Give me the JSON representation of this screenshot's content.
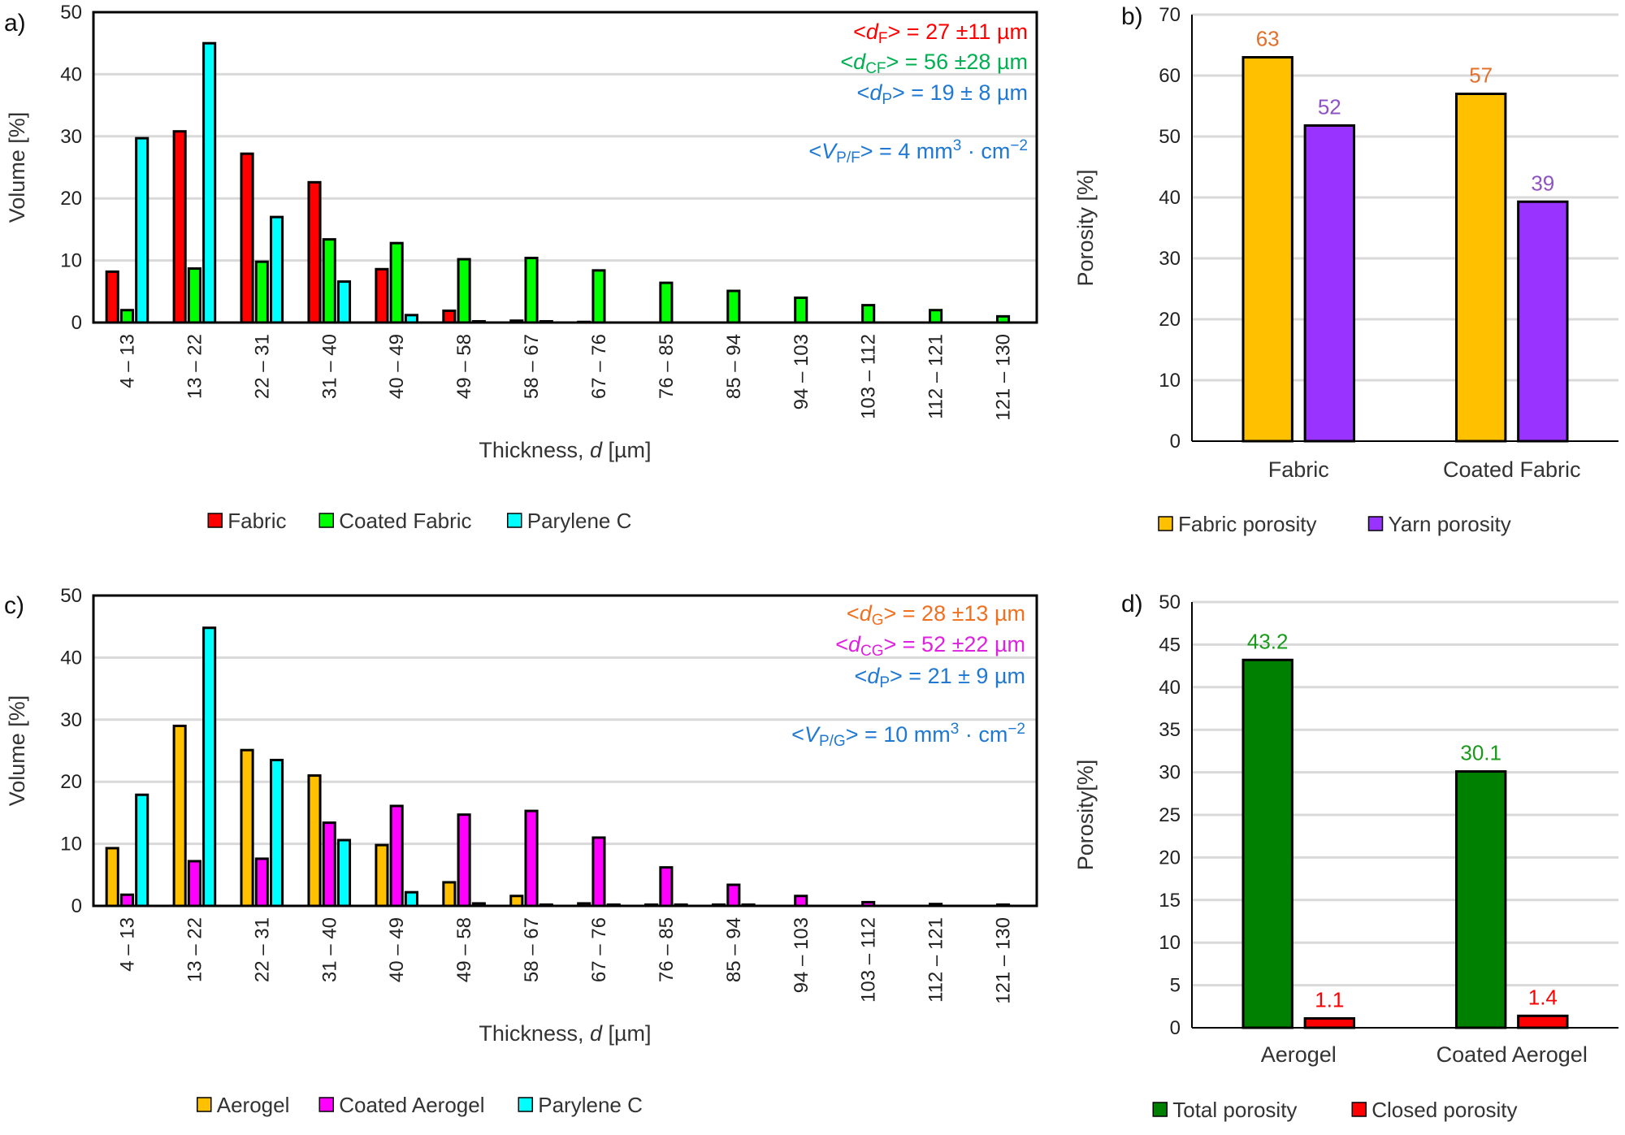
{
  "chart_data": [
    {
      "panel": "a)",
      "type": "bar",
      "ylabel": "Volume [%]",
      "xlabel_parts": [
        {
          "t": "Thickness, "
        },
        {
          "t": "d",
          "s": "i"
        },
        {
          "t": " [µm]"
        }
      ],
      "ylim": [
        0,
        50
      ],
      "ystep": 10,
      "grid": true,
      "legend": "bottom",
      "categories": [
        "4 – 13",
        "13 – 22",
        "22 – 31",
        "31 – 40",
        "40 – 49",
        "49 – 58",
        "58 – 67",
        "67 – 76",
        "76 – 85",
        "85 – 94",
        "94 – 103",
        "103 – 112",
        "112 – 121",
        "121 – 130"
      ],
      "series": [
        {
          "name": "Fabric",
          "color": "#ff0000",
          "values": [
            8.2,
            30.8,
            27.2,
            22.6,
            8.6,
            1.9,
            0.3,
            0.1,
            0,
            0,
            0,
            0,
            0,
            0
          ]
        },
        {
          "name": "Coated Fabric",
          "color": "#00ff00",
          "values": [
            2.0,
            8.7,
            9.8,
            13.4,
            12.8,
            10.2,
            10.4,
            8.4,
            6.4,
            5.1,
            4.0,
            2.8,
            2.0,
            1.0
          ]
        },
        {
          "name": "Parylene C",
          "color": "#00ffff",
          "values": [
            29.7,
            45.0,
            17.0,
            6.6,
            1.2,
            0.2,
            0.2,
            0,
            0,
            0,
            0,
            0,
            0,
            0
          ]
        }
      ],
      "annotations": [
        {
          "color": "#ff0000",
          "parts": [
            {
              "t": "<"
            },
            {
              "t": "d",
              "s": "i"
            },
            {
              "t": "F",
              "s": "sub"
            },
            {
              "t": "> = 27 ±11 µm"
            }
          ]
        },
        {
          "color": "#00b050",
          "parts": [
            {
              "t": "<"
            },
            {
              "t": "d",
              "s": "i"
            },
            {
              "t": "CF",
              "s": "sub"
            },
            {
              "t": "> = 56 ±28 µm"
            }
          ]
        },
        {
          "color": "#1f78d1",
          "parts": [
            {
              "t": "<"
            },
            {
              "t": "d",
              "s": "i"
            },
            {
              "t": "P",
              "s": "sub"
            },
            {
              "t": "> = 19 ± 8 µm"
            }
          ]
        },
        {
          "color": "#1f78d1",
          "parts": [
            {
              "t": "<"
            },
            {
              "t": "V",
              "s": "i"
            },
            {
              "t": "P/F",
              "s": "sub"
            },
            {
              "t": "> = 4 mm"
            },
            {
              "t": "3",
              "s": "sup"
            },
            {
              "t": " · cm"
            },
            {
              "t": "−2",
              "s": "sup"
            }
          ]
        }
      ]
    },
    {
      "panel": "b)",
      "type": "bar",
      "ylabel": "Porosity [%]",
      "ylim": [
        0,
        70
      ],
      "ystep": 10,
      "grid": true,
      "legend": "bottom",
      "categories": [
        "Fabric",
        "Coated Fabric"
      ],
      "series": [
        {
          "name": "Fabric porosity",
          "color": "#ffc000",
          "label_color": "#e0702a",
          "values": [
            63,
            57
          ],
          "labels": [
            "63",
            "57"
          ]
        },
        {
          "name": "Yarn porosity",
          "color": "#9933ff",
          "label_color": "#8e52c4",
          "values": [
            51.8,
            39.3
          ],
          "labels": [
            "52",
            "39"
          ]
        }
      ]
    },
    {
      "panel": "c)",
      "type": "bar",
      "ylabel": "Volume [%]",
      "xlabel_parts": [
        {
          "t": "Thickness, "
        },
        {
          "t": "d",
          "s": "i"
        },
        {
          "t": " [µm]"
        }
      ],
      "ylim": [
        0,
        50
      ],
      "ystep": 10,
      "grid": true,
      "legend": "bottom",
      "categories": [
        "4 – 13",
        "13 – 22",
        "22 – 31",
        "31 – 40",
        "40 – 49",
        "49 – 58",
        "58 – 67",
        "67 – 76",
        "76 – 85",
        "85 – 94",
        "94 – 103",
        "103 – 112",
        "112 – 121",
        "121 – 130"
      ],
      "series": [
        {
          "name": "Aerogel",
          "color": "#ffc000",
          "values": [
            9.3,
            29.0,
            25.1,
            21.0,
            9.8,
            3.8,
            1.6,
            0.4,
            0.2,
            0.2,
            0,
            0,
            0,
            0
          ]
        },
        {
          "name": "Coated Aerogel",
          "color": "#ff00ff",
          "values": [
            1.8,
            7.2,
            7.6,
            13.4,
            16.1,
            14.7,
            15.3,
            11.0,
            6.2,
            3.4,
            1.6,
            0.6,
            0.3,
            0.2
          ]
        },
        {
          "name": "Parylene C",
          "color": "#00ffff",
          "values": [
            17.9,
            44.8,
            23.5,
            10.6,
            2.2,
            0.4,
            0.2,
            0.2,
            0.2,
            0.2,
            0,
            0,
            0,
            0
          ]
        }
      ],
      "annotations": [
        {
          "color": "#f07020",
          "parts": [
            {
              "t": "<"
            },
            {
              "t": "d",
              "s": "i"
            },
            {
              "t": "G",
              "s": "sub"
            },
            {
              "t": "> = 28 ±13 µm"
            }
          ]
        },
        {
          "color": "#e020e0",
          "parts": [
            {
              "t": "<"
            },
            {
              "t": "d",
              "s": "i"
            },
            {
              "t": "CG",
              "s": "sub"
            },
            {
              "t": "> = 52 ±22 µm"
            }
          ]
        },
        {
          "color": "#1f78d1",
          "parts": [
            {
              "t": "<"
            },
            {
              "t": "d",
              "s": "i"
            },
            {
              "t": "P",
              "s": "sub"
            },
            {
              "t": "> = 21 ± 9 µm"
            }
          ]
        },
        {
          "color": "#1f78d1",
          "parts": [
            {
              "t": "<"
            },
            {
              "t": "V",
              "s": "i"
            },
            {
              "t": "P/G",
              "s": "sub"
            },
            {
              "t": "> = 10 mm"
            },
            {
              "t": "3",
              "s": "sup"
            },
            {
              "t": " · cm"
            },
            {
              "t": "−2",
              "s": "sup"
            }
          ]
        }
      ]
    },
    {
      "panel": "d)",
      "type": "bar",
      "ylabel": "Porosity[%]",
      "ylim": [
        0,
        50
      ],
      "ystep": 5,
      "grid": true,
      "legend": "bottom",
      "categories": [
        "Aerogel",
        "Coated Aerogel"
      ],
      "series": [
        {
          "name": "Total porosity",
          "color": "#008000",
          "label_color": "#1a9a1a",
          "values": [
            43.2,
            30.1
          ],
          "labels": [
            "43.2",
            "30.1"
          ]
        },
        {
          "name": "Closed porosity",
          "color": "#ff0000",
          "label_color": "#ff0000",
          "values": [
            1.1,
            1.4
          ],
          "labels": [
            "1.1",
            "1.4"
          ]
        }
      ]
    }
  ]
}
